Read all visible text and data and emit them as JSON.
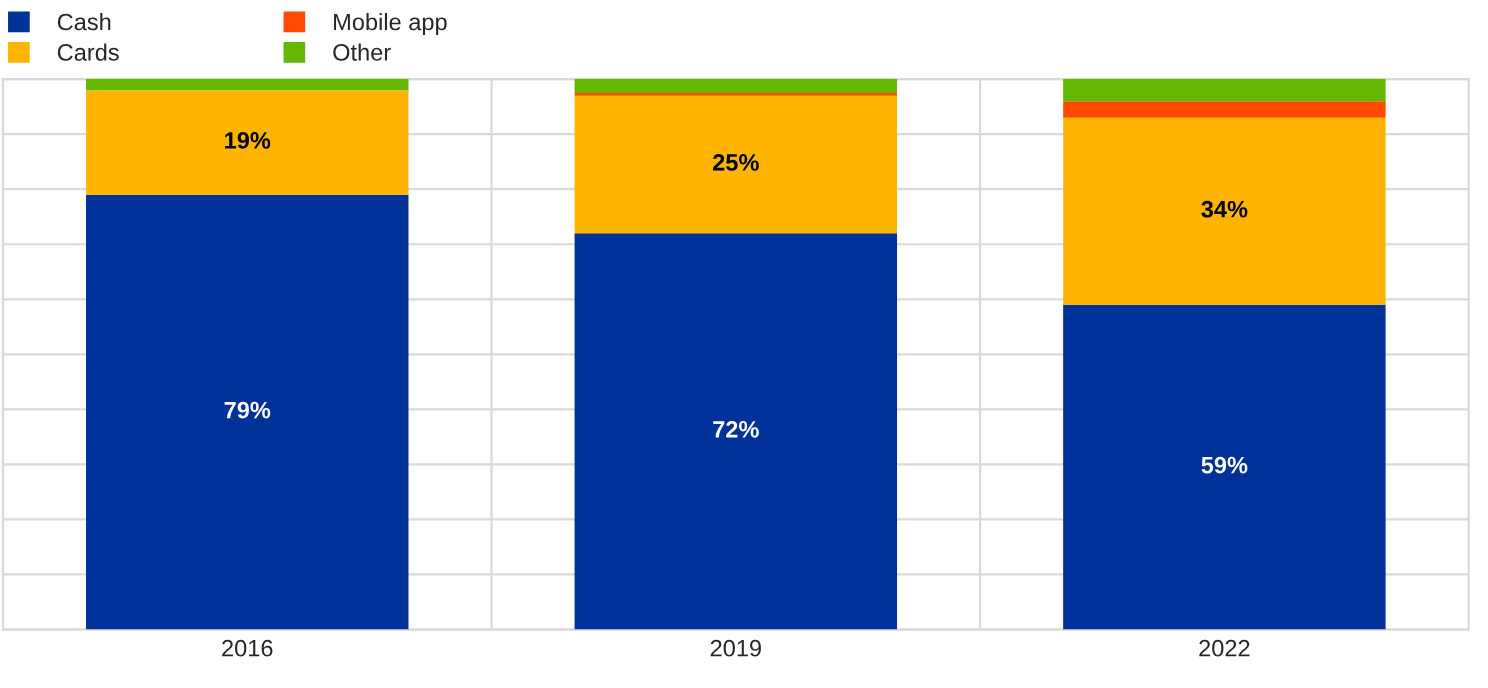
{
  "chart_data": {
    "type": "bar",
    "stacked": true,
    "categories": [
      "2016",
      "2019",
      "2022"
    ],
    "series": [
      {
        "name": "Cash",
        "color": "#003299",
        "values": [
          79,
          72,
          59
        ],
        "value_labels": [
          "79%",
          "72%",
          "59%"
        ]
      },
      {
        "name": "Cards",
        "color": "#ffb400",
        "values": [
          19,
          25,
          34
        ],
        "value_labels": [
          "19%",
          "25%",
          "34%"
        ]
      },
      {
        "name": "Mobile app",
        "color": "#ff4b00",
        "values": [
          0,
          0.5,
          3
        ],
        "value_labels": [
          null,
          null,
          null
        ]
      },
      {
        "name": "Other",
        "color": "#65b800",
        "values": [
          2,
          2.5,
          4
        ],
        "value_labels": [
          null,
          null,
          null
        ]
      }
    ],
    "ylim": [
      0,
      100
    ],
    "yticks": [
      {
        "value": 0,
        "label": null
      },
      {
        "value": 10,
        "label": null
      },
      {
        "value": 20,
        "label": null
      },
      {
        "value": 30,
        "label": null
      },
      {
        "value": 40,
        "label": null
      },
      {
        "value": 50,
        "label": null
      },
      {
        "value": 60,
        "label": null
      },
      {
        "value": 70,
        "label": null
      },
      {
        "value": 80,
        "label": null
      },
      {
        "value": 90,
        "label": null
      },
      {
        "value": 100,
        "label": null
      }
    ],
    "tick_labels": "x",
    "grid": true,
    "legend": "top left"
  }
}
